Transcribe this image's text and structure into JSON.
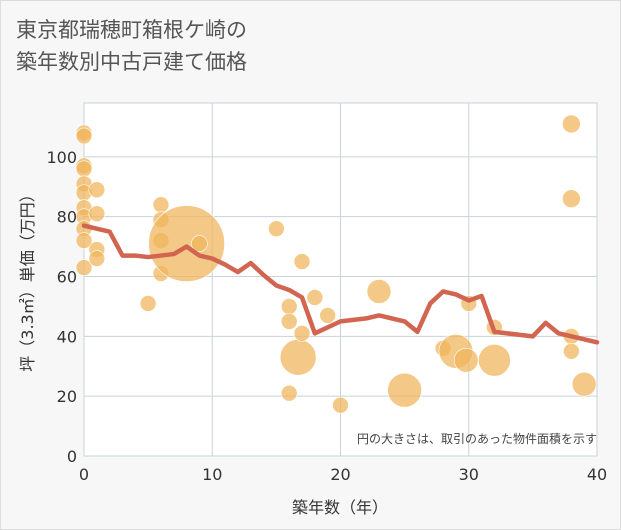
{
  "title": {
    "line1": "東京都瑞穂町箱根ケ崎の",
    "line2": "築年数別中古戸建て価格"
  },
  "note": "円の大きさは、取引のあった物件面積を示す",
  "colors": {
    "background": "#ffffff",
    "grid": "#c8d3da",
    "bubble": "#f0b45a",
    "line": "#d2654f"
  },
  "chart_data": {
    "type": "scatter",
    "xlabel": "築年数（年）",
    "ylabel": "坪（3.3㎡）単価（万円）",
    "xlim": [
      0,
      40
    ],
    "ylim": [
      0,
      118
    ],
    "xticks": [
      0,
      10,
      20,
      30,
      40
    ],
    "yticks": [
      0,
      20,
      40,
      60,
      80,
      100
    ],
    "bubbles": [
      {
        "x": 0,
        "y": 108,
        "s": 8
      },
      {
        "x": 0,
        "y": 107,
        "s": 8
      },
      {
        "x": 0,
        "y": 97,
        "s": 8
      },
      {
        "x": 0,
        "y": 96,
        "s": 8
      },
      {
        "x": 0,
        "y": 91,
        "s": 8
      },
      {
        "x": 0,
        "y": 88,
        "s": 8
      },
      {
        "x": 0,
        "y": 83,
        "s": 8
      },
      {
        "x": 0,
        "y": 80,
        "s": 8
      },
      {
        "x": 0,
        "y": 76,
        "s": 8
      },
      {
        "x": 0,
        "y": 72,
        "s": 8
      },
      {
        "x": 0,
        "y": 63,
        "s": 8
      },
      {
        "x": 1,
        "y": 89,
        "s": 8
      },
      {
        "x": 1,
        "y": 81,
        "s": 8
      },
      {
        "x": 1,
        "y": 69,
        "s": 8
      },
      {
        "x": 1,
        "y": 66,
        "s": 8
      },
      {
        "x": 5,
        "y": 51,
        "s": 8
      },
      {
        "x": 6,
        "y": 84,
        "s": 8
      },
      {
        "x": 6,
        "y": 79,
        "s": 8
      },
      {
        "x": 6,
        "y": 72,
        "s": 8
      },
      {
        "x": 6,
        "y": 61,
        "s": 8
      },
      {
        "x": 8,
        "y": 71,
        "s": 38
      },
      {
        "x": 9,
        "y": 71,
        "s": 8
      },
      {
        "x": 15,
        "y": 76,
        "s": 8
      },
      {
        "x": 16,
        "y": 50,
        "s": 8
      },
      {
        "x": 16,
        "y": 45,
        "s": 8
      },
      {
        "x": 16,
        "y": 21,
        "s": 8
      },
      {
        "x": 16.7,
        "y": 33,
        "s": 18
      },
      {
        "x": 17,
        "y": 65,
        "s": 8
      },
      {
        "x": 17,
        "y": 41,
        "s": 8
      },
      {
        "x": 18,
        "y": 53,
        "s": 8
      },
      {
        "x": 19,
        "y": 47,
        "s": 8
      },
      {
        "x": 20,
        "y": 17,
        "s": 8
      },
      {
        "x": 23,
        "y": 55,
        "s": 12
      },
      {
        "x": 25,
        "y": 22,
        "s": 17
      },
      {
        "x": 28,
        "y": 36,
        "s": 8
      },
      {
        "x": 29,
        "y": 35,
        "s": 17
      },
      {
        "x": 29.8,
        "y": 32,
        "s": 12
      },
      {
        "x": 30,
        "y": 51,
        "s": 8
      },
      {
        "x": 32,
        "y": 43,
        "s": 8
      },
      {
        "x": 32,
        "y": 32,
        "s": 16
      },
      {
        "x": 38,
        "y": 111,
        "s": 9
      },
      {
        "x": 38,
        "y": 86,
        "s": 9
      },
      {
        "x": 38,
        "y": 40,
        "s": 8
      },
      {
        "x": 38,
        "y": 35,
        "s": 8
      },
      {
        "x": 39,
        "y": 24,
        "s": 12
      }
    ],
    "line": {
      "x": [
        0,
        1,
        2,
        3,
        4,
        5,
        6,
        7,
        8,
        9,
        10,
        11,
        12,
        13,
        14,
        15,
        16,
        17,
        18,
        19,
        20,
        21,
        22,
        23,
        24,
        25,
        26,
        27,
        28,
        29,
        30,
        31,
        32,
        33,
        34,
        35,
        36,
        37,
        38,
        39,
        40
      ],
      "y": [
        77,
        76,
        75,
        67,
        67,
        66.5,
        67,
        67.5,
        70,
        67,
        66,
        64,
        61.5,
        64.5,
        60.5,
        57,
        55.5,
        53,
        41,
        43,
        45,
        45.5,
        46,
        47,
        46,
        45,
        41.5,
        51,
        55,
        54,
        52,
        53.5,
        41.5,
        41,
        40.5,
        40,
        44.5,
        41,
        40,
        39,
        38
      ]
    }
  }
}
